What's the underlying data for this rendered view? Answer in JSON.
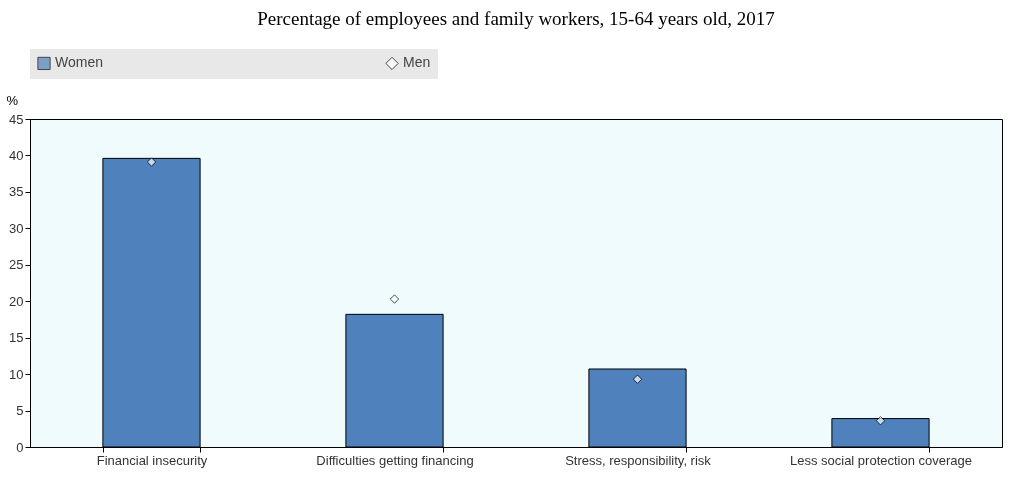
{
  "chart_data": {
    "type": "bar",
    "title": "Percentage of employees and family workers, 15-64 years old, 2017",
    "ylabel": "%",
    "categories": [
      "Financial insecurity",
      "Difficulties getting financing",
      "Stress, responsibility, risk",
      "Less social protection coverage"
    ],
    "series": [
      {
        "name": "Women",
        "type": "bar",
        "color": "#4f81bd",
        "values": [
          39.6,
          18.2,
          10.7,
          3.9
        ]
      },
      {
        "name": "Men",
        "type": "scatter",
        "marker": "diamond",
        "color": "#ffffff",
        "values": [
          39.1,
          20.3,
          9.3,
          3.6
        ]
      }
    ],
    "ylim": [
      0,
      45
    ],
    "yticks": [
      0,
      5,
      10,
      15,
      20,
      25,
      30,
      35,
      40,
      45
    ],
    "legend": "top"
  }
}
